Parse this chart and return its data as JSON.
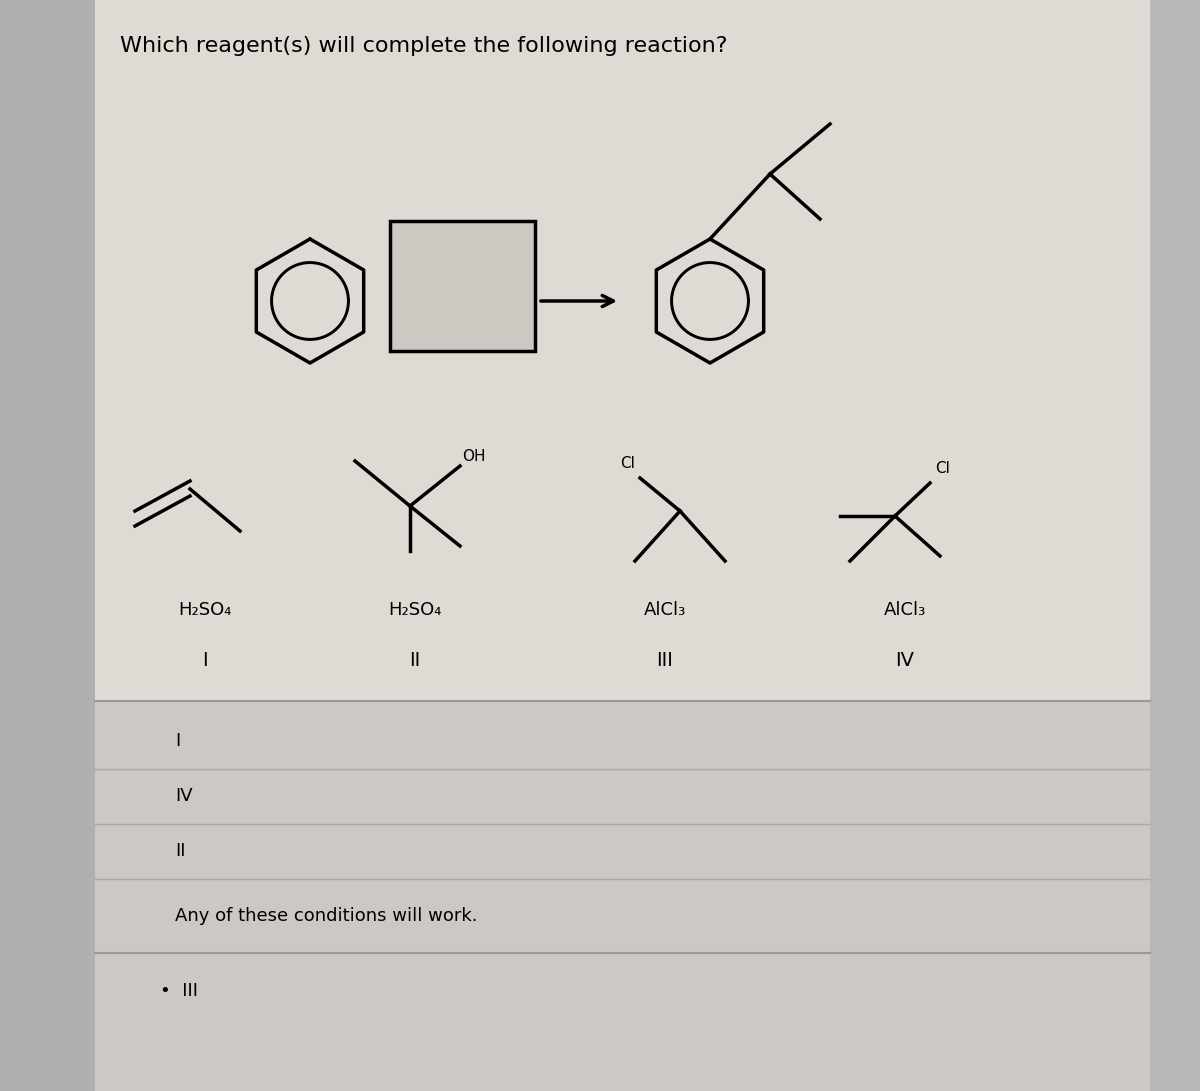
{
  "title": "Which reagent(s) will complete the following reaction?",
  "bg_color": "#c8c8c8",
  "panel_color": "#e0ddd8",
  "title_fontsize": 16,
  "reagent_labels": [
    "H₂SO₄",
    "H₂SO₄",
    "AlCl₃",
    "AlCl₃"
  ],
  "roman_labels": [
    "I",
    "II",
    "III",
    "IV"
  ],
  "answer_options": [
    "I",
    "IV",
    "II",
    "Any of these conditions will work."
  ],
  "selected_bullet": "•  III",
  "answer_bg": "#d4d0cc"
}
